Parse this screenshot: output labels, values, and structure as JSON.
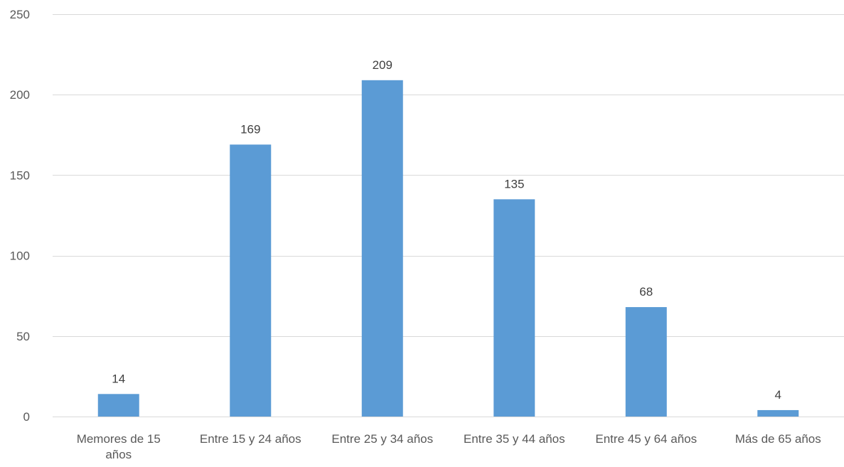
{
  "chart_data": {
    "type": "bar",
    "title": "",
    "xlabel": "",
    "ylabel": "",
    "categories": [
      [
        "Memores de 15",
        "años"
      ],
      [
        "Entre 15 y 24 años"
      ],
      [
        "Entre 25 y 34 años"
      ],
      [
        "Entre 35 y 44 años"
      ],
      [
        "Entre 45 y 64 años"
      ],
      [
        "Más de 65 años"
      ]
    ],
    "values": [
      14,
      169,
      209,
      135,
      68,
      4
    ],
    "data_labels": [
      "14",
      "169",
      "209",
      "135",
      "68",
      "4"
    ],
    "ylim": [
      0,
      250
    ],
    "yticks": [
      0,
      50,
      100,
      150,
      200,
      250
    ],
    "ytick_labels": [
      "0",
      "50",
      "100",
      "150",
      "200",
      "250"
    ],
    "grid": true,
    "legend": "none",
    "bar_color": "#5b9bd5"
  }
}
